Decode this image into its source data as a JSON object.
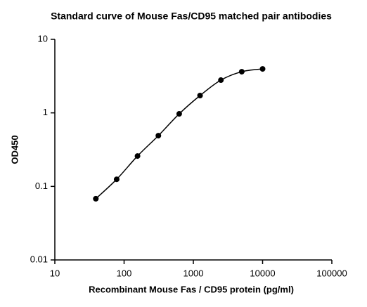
{
  "chart_data": {
    "type": "scatter",
    "title": "Standard curve of Mouse Fas/CD95 matched pair antibodies",
    "xlabel": "Recombinant Mouse Fas / CD95 protein (pg/ml)",
    "ylabel": "OD450",
    "x": [
      39.06,
      78.125,
      156.25,
      312.5,
      625,
      1250,
      2500,
      5000,
      10000
    ],
    "values": [
      0.068,
      0.125,
      0.259,
      0.49,
      0.97,
      1.72,
      2.79,
      3.63,
      3.96
    ],
    "color": "#000000",
    "line": "smooth",
    "xscale": "log",
    "yscale": "log",
    "xlim": [
      10,
      100000
    ],
    "xticks": [
      10,
      100,
      1000,
      10000,
      100000
    ],
    "ylim": [
      0.01,
      10
    ],
    "yticks": [
      0.01,
      0.1,
      1,
      10
    ]
  }
}
